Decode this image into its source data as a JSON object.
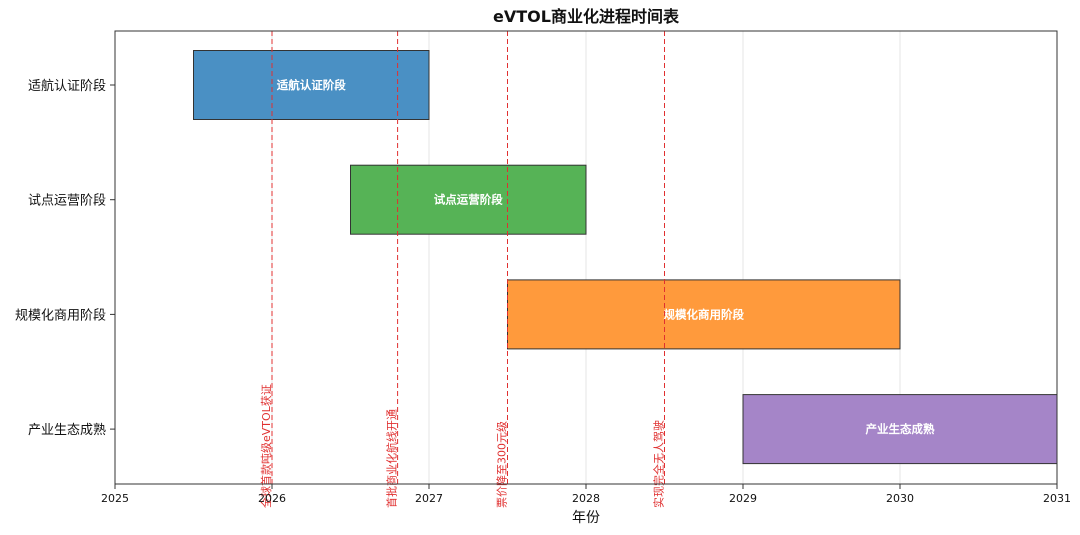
{
  "chart_data": {
    "type": "gantt",
    "title": "eVTOL商业化进程时间表",
    "xlabel": "年份",
    "ylabel": "",
    "xlim": [
      2025,
      2031
    ],
    "xticks": [
      "2025",
      "2026",
      "2027",
      "2028",
      "2029",
      "2030",
      "2031"
    ],
    "xtick_values": [
      2025,
      2026,
      2027,
      2028,
      2029,
      2030,
      2031
    ],
    "grid": "vertical",
    "phases": [
      {
        "name": "适航认证阶段",
        "start": 2025.5,
        "end": 2027.0,
        "color": "#4a90c4"
      },
      {
        "name": "试点运营阶段",
        "start": 2026.5,
        "end": 2028.0,
        "color": "#56b356"
      },
      {
        "name": "规模化商用阶段",
        "start": 2027.5,
        "end": 2030.0,
        "color": "#ff9a3c"
      },
      {
        "name": "产业生态成熟",
        "start": 2029.0,
        "end": 2031.0,
        "color": "#a585c8"
      }
    ],
    "milestones": [
      {
        "label": "全球首款吨级eVTOL获证",
        "x": 2026.0
      },
      {
        "label": "首批商业化航线开通",
        "x": 2026.8
      },
      {
        "label": "票价降至300元级",
        "x": 2027.5
      },
      {
        "label": "实现完全无人驾驶",
        "x": 2028.5
      }
    ],
    "milestone_color": "#e03030"
  }
}
